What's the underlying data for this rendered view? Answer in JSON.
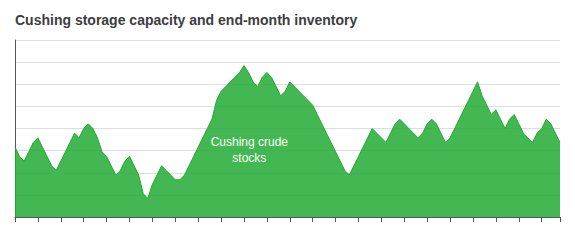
{
  "chart_data": {
    "type": "area",
    "title": "Cushing storage capacity and end-month inventory",
    "annotation": "Cushing crude\nstocks",
    "categories": [
      null,
      null,
      null,
      null,
      null,
      null,
      null,
      null,
      null,
      null,
      null,
      null,
      null,
      null,
      null,
      null,
      null,
      null,
      null,
      null,
      null,
      null,
      null,
      null,
      null,
      null,
      null,
      null,
      null,
      null,
      null,
      null,
      null,
      null,
      null,
      null,
      null,
      null,
      null,
      null,
      null,
      null,
      null,
      null,
      null,
      null,
      null,
      null,
      null,
      null,
      null,
      null,
      null,
      null,
      null,
      null,
      null,
      null,
      null,
      null,
      null,
      null,
      null,
      null,
      null,
      null,
      null,
      null,
      null,
      null,
      null,
      null,
      null,
      null,
      null,
      null,
      null,
      null,
      null,
      null,
      null,
      null,
      null,
      null,
      null,
      null,
      null,
      null,
      null,
      null,
      null,
      null,
      null,
      null,
      null,
      null,
      null,
      null,
      null,
      null,
      null,
      null,
      null,
      null,
      null,
      null,
      null,
      null,
      null,
      null,
      null,
      null,
      null,
      null,
      null,
      null,
      null,
      null,
      null,
      null
    ],
    "values": [
      30,
      26,
      24,
      28,
      32,
      34,
      30,
      26,
      22,
      20,
      24,
      28,
      32,
      36,
      34,
      38,
      40,
      38,
      34,
      28,
      26,
      22,
      18,
      20,
      24,
      26,
      22,
      18,
      10,
      8,
      14,
      18,
      22,
      20,
      18,
      16,
      16,
      18,
      22,
      26,
      30,
      34,
      38,
      42,
      50,
      54,
      56,
      58,
      60,
      62,
      65,
      62,
      58,
      56,
      60,
      62,
      60,
      56,
      52,
      54,
      58,
      56,
      54,
      52,
      50,
      48,
      44,
      40,
      36,
      32,
      28,
      24,
      20,
      18,
      22,
      26,
      30,
      34,
      38,
      36,
      34,
      32,
      36,
      40,
      42,
      40,
      38,
      36,
      34,
      36,
      40,
      42,
      40,
      36,
      32,
      34,
      38,
      42,
      46,
      50,
      54,
      58,
      52,
      48,
      44,
      46,
      42,
      38,
      42,
      44,
      40,
      36,
      34,
      32,
      36,
      38,
      42,
      40,
      36,
      32
    ],
    "color": "#22aa33",
    "ylim": [
      0,
      76
    ],
    "yticks": [
      0,
      9.5,
      19,
      28.5,
      38,
      47.5,
      57,
      66.5,
      76
    ],
    "grid": true,
    "tick_labels": false
  }
}
